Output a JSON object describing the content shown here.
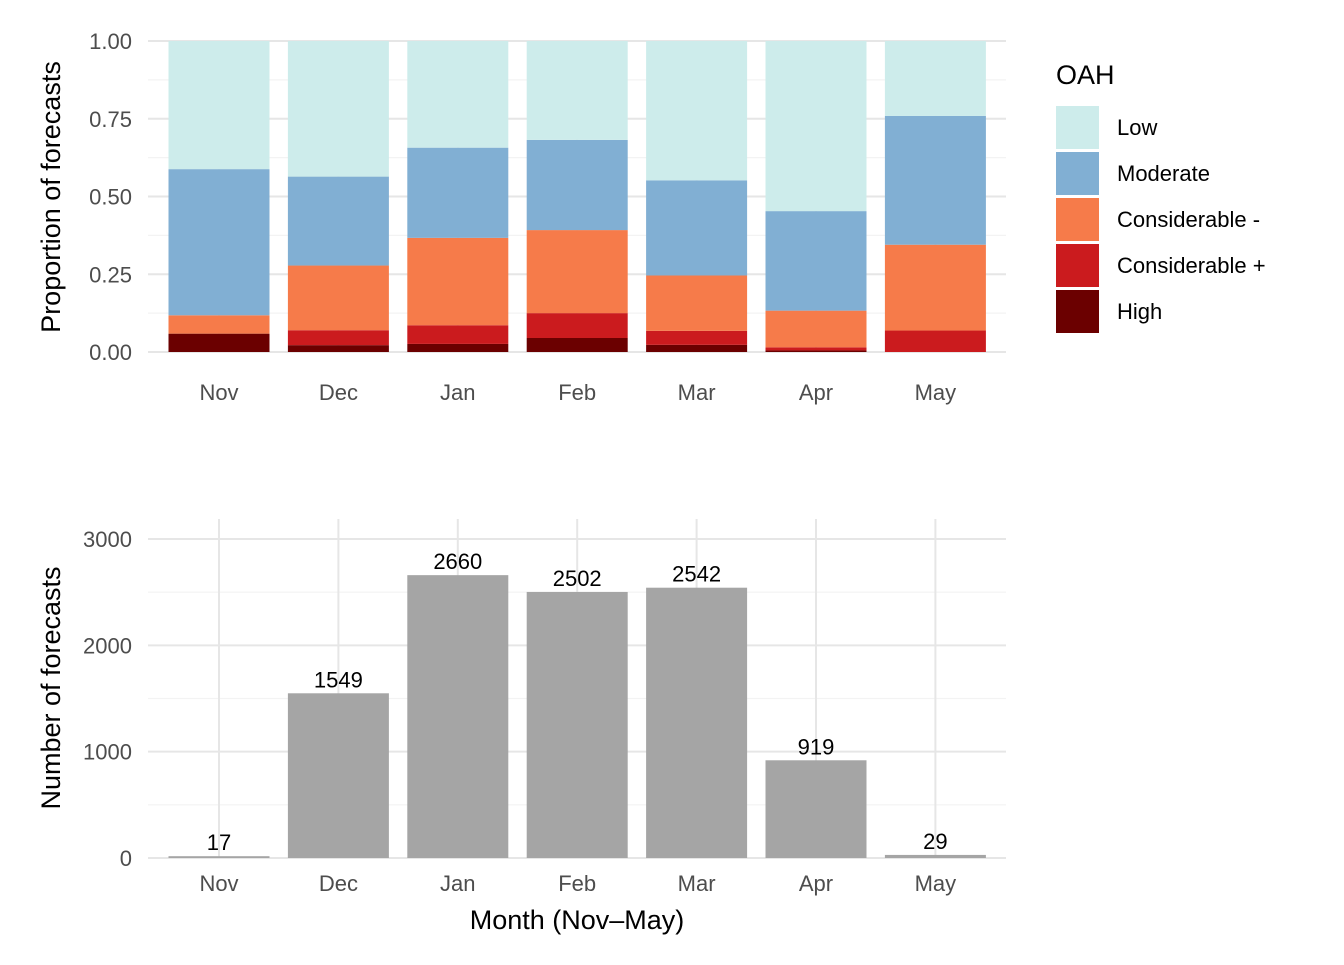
{
  "chart_data": [
    {
      "type": "bar",
      "stacked": true,
      "categories": [
        "Nov",
        "Dec",
        "Jan",
        "Feb",
        "Mar",
        "Apr",
        "May"
      ],
      "ylabel": "Proportion of forecasts",
      "xlabel": "",
      "ylim": [
        0,
        1
      ],
      "yticks": [
        "0.00",
        "0.25",
        "0.50",
        "0.75",
        "1.00"
      ],
      "grid": true,
      "legend": {
        "title": "OAH",
        "position": "right",
        "entries": [
          "Low",
          "Moderate",
          "Considerable -",
          "Considerable +",
          "High"
        ]
      },
      "series": [
        {
          "name": "High",
          "color": "#6b0000",
          "values": [
            0.059,
            0.022,
            0.026,
            0.045,
            0.023,
            0.005,
            0.0
          ]
        },
        {
          "name": "Considerable +",
          "color": "#cb1b1e",
          "values": [
            0.0,
            0.048,
            0.06,
            0.08,
            0.045,
            0.01,
            0.069
          ]
        },
        {
          "name": "Considerable -",
          "color": "#f67b4a",
          "values": [
            0.059,
            0.208,
            0.281,
            0.267,
            0.178,
            0.118,
            0.276
          ]
        },
        {
          "name": "Moderate",
          "color": "#81afd3",
          "values": [
            0.47,
            0.286,
            0.29,
            0.29,
            0.306,
            0.32,
            0.414
          ]
        },
        {
          "name": "Low",
          "color": "#cdeceb",
          "values": [
            0.412,
            0.436,
            0.343,
            0.318,
            0.448,
            0.547,
            0.241
          ]
        }
      ]
    },
    {
      "type": "bar",
      "categories": [
        "Nov",
        "Dec",
        "Jan",
        "Feb",
        "Mar",
        "Apr",
        "May"
      ],
      "values": [
        17,
        1549,
        2660,
        2502,
        2542,
        919,
        29
      ],
      "data_labels": [
        "17",
        "1549",
        "2660",
        "2502",
        "2542",
        "919",
        "29"
      ],
      "ylabel": "Number of forecasts",
      "xlabel": "Month (Nov–May)",
      "ylim": [
        0,
        3000
      ],
      "yticks": [
        "0",
        "1000",
        "2000",
        "3000"
      ],
      "grid": true,
      "bar_color": "#a5a5a5"
    }
  ]
}
